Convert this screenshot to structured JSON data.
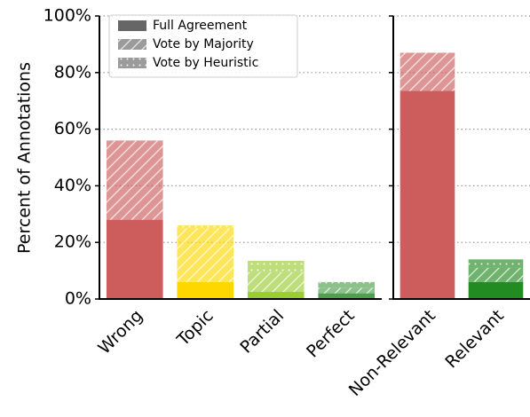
{
  "chart_data": [
    {
      "type": "bar",
      "stacked": true,
      "ylabel": "Percent of Annotations",
      "categories": [
        "Wrong",
        "Topic",
        "Partial",
        "Perfect"
      ],
      "colors": [
        "#cd5c5c",
        "#ffd700",
        "#9acd32",
        "#4f9f4f"
      ],
      "series": [
        {
          "name": "Full Agreement",
          "pattern": "solid",
          "alpha": 1,
          "values": [
            28,
            6,
            2.5,
            2
          ]
        },
        {
          "name": "Vote by Majority",
          "pattern": "diagonal",
          "alpha": 0.65,
          "values": [
            28,
            19,
            7,
            2
          ]
        },
        {
          "name": "Vote by Heuristic",
          "pattern": "dots",
          "alpha": 0.65,
          "values": [
            0,
            1,
            4,
            2
          ]
        }
      ],
      "legend": "upper left",
      "legend_color": "#666666",
      "ylim": [
        0,
        100
      ],
      "yticks": [
        {
          "value": 0,
          "label": "0%"
        },
        {
          "value": 20,
          "label": "20%"
        },
        {
          "value": 40,
          "label": "40%"
        },
        {
          "value": 60,
          "label": "60%"
        },
        {
          "value": 80,
          "label": "80%"
        },
        {
          "value": 100,
          "label": "100%"
        }
      ],
      "grid": true
    },
    {
      "type": "bar",
      "stacked": true,
      "categories": [
        "Non-Relevant",
        "Relevant"
      ],
      "colors": [
        "#cd5c5c",
        "#228b22"
      ],
      "series": [
        {
          "name": "Full Agreement",
          "pattern": "solid",
          "alpha": 1,
          "values": [
            73.5,
            6
          ]
        },
        {
          "name": "Vote by Majority",
          "pattern": "diagonal",
          "alpha": 0.65,
          "values": [
            13.5,
            5
          ]
        },
        {
          "name": "Vote by Heuristic",
          "pattern": "dots",
          "alpha": 0.65,
          "values": [
            0,
            3
          ]
        }
      ],
      "ylim": [
        0,
        100
      ],
      "yticks": [
        0,
        20,
        40,
        60,
        80,
        100
      ],
      "grid": true
    }
  ]
}
